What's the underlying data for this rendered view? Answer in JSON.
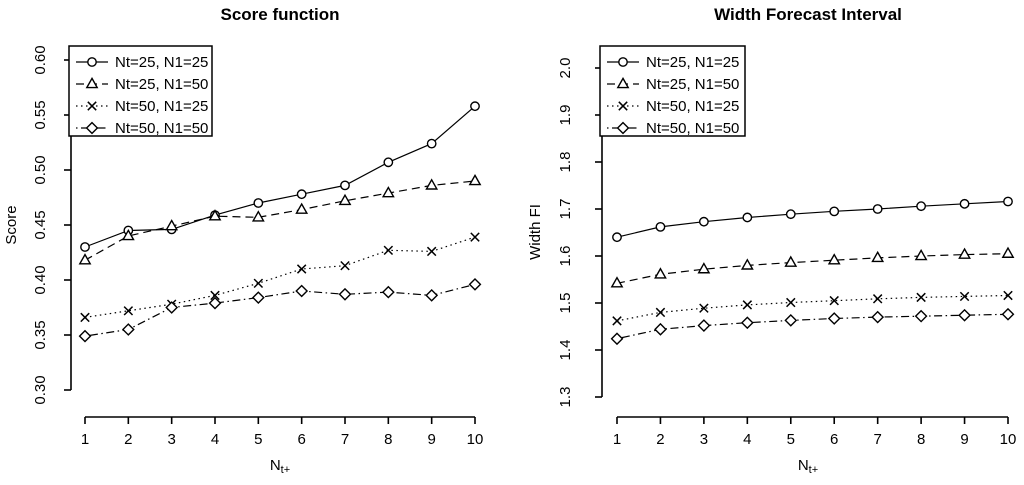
{
  "page_background": "#ffffff",
  "ink_color": "#000000",
  "chart_data": [
    {
      "type": "line",
      "title": "Score function",
      "ylabel": "Score",
      "xlabel": "N_t+",
      "xlabel_base": "N",
      "xlabel_sub": "t+",
      "x": [
        1,
        2,
        3,
        4,
        5,
        6,
        7,
        8,
        9,
        10
      ],
      "xtick_labels": [
        "1",
        "2",
        "3",
        "4",
        "5",
        "6",
        "7",
        "8",
        "9",
        "10"
      ],
      "ylim": [
        0.3,
        0.6
      ],
      "ytick_labels": [
        "0.30",
        "0.35",
        "0.40",
        "0.45",
        "0.50",
        "0.55",
        "0.60"
      ],
      "grid": false,
      "legend_position": "topleft",
      "series": [
        {
          "name": "Nt=25, N1=25",
          "marker": "circle",
          "linetype": "solid",
          "values": [
            0.43,
            0.445,
            0.446,
            0.459,
            0.47,
            0.478,
            0.486,
            0.507,
            0.524,
            0.558
          ]
        },
        {
          "name": "Nt=25, N1=50",
          "marker": "triangle",
          "linetype": "dashed",
          "values": [
            0.418,
            0.44,
            0.449,
            0.458,
            0.457,
            0.464,
            0.472,
            0.479,
            0.486,
            0.49
          ]
        },
        {
          "name": "Nt=50, N1=25",
          "marker": "x",
          "linetype": "dotted",
          "values": [
            0.366,
            0.372,
            0.378,
            0.386,
            0.397,
            0.41,
            0.413,
            0.427,
            0.426,
            0.439
          ]
        },
        {
          "name": "Nt=50, N1=50",
          "marker": "diamond",
          "linetype": "dashdot",
          "values": [
            0.349,
            0.355,
            0.375,
            0.379,
            0.384,
            0.39,
            0.387,
            0.389,
            0.386,
            0.396
          ]
        }
      ]
    },
    {
      "type": "line",
      "title": "Width Forecast Interval",
      "ylabel": "Width FI",
      "xlabel": "N_t+",
      "xlabel_base": "N",
      "xlabel_sub": "t+",
      "x": [
        1,
        2,
        3,
        4,
        5,
        6,
        7,
        8,
        9,
        10
      ],
      "xtick_labels": [
        "1",
        "2",
        "3",
        "4",
        "5",
        "6",
        "7",
        "8",
        "9",
        "10"
      ],
      "ylim": [
        1.3,
        2.0
      ],
      "ytick_labels": [
        "1.3",
        "1.4",
        "1.5",
        "1.6",
        "1.7",
        "1.8",
        "1.9",
        "2.0"
      ],
      "grid": false,
      "legend_position": "topleft",
      "series": [
        {
          "name": "Nt=25, N1=25",
          "marker": "circle",
          "linetype": "solid",
          "values": [
            1.64,
            1.662,
            1.673,
            1.682,
            1.689,
            1.695,
            1.7,
            1.706,
            1.711,
            1.716
          ]
        },
        {
          "name": "Nt=25, N1=50",
          "marker": "triangle",
          "linetype": "dashed",
          "values": [
            1.542,
            1.561,
            1.572,
            1.58,
            1.586,
            1.591,
            1.596,
            1.6,
            1.603,
            1.605
          ]
        },
        {
          "name": "Nt=50, N1=25",
          "marker": "x",
          "linetype": "dotted",
          "values": [
            1.462,
            1.48,
            1.489,
            1.496,
            1.501,
            1.505,
            1.509,
            1.512,
            1.514,
            1.516
          ]
        },
        {
          "name": "Nt=50, N1=50",
          "marker": "diamond",
          "linetype": "dashdot",
          "values": [
            1.424,
            1.444,
            1.452,
            1.458,
            1.463,
            1.467,
            1.47,
            1.472,
            1.474,
            1.476
          ]
        }
      ]
    }
  ]
}
